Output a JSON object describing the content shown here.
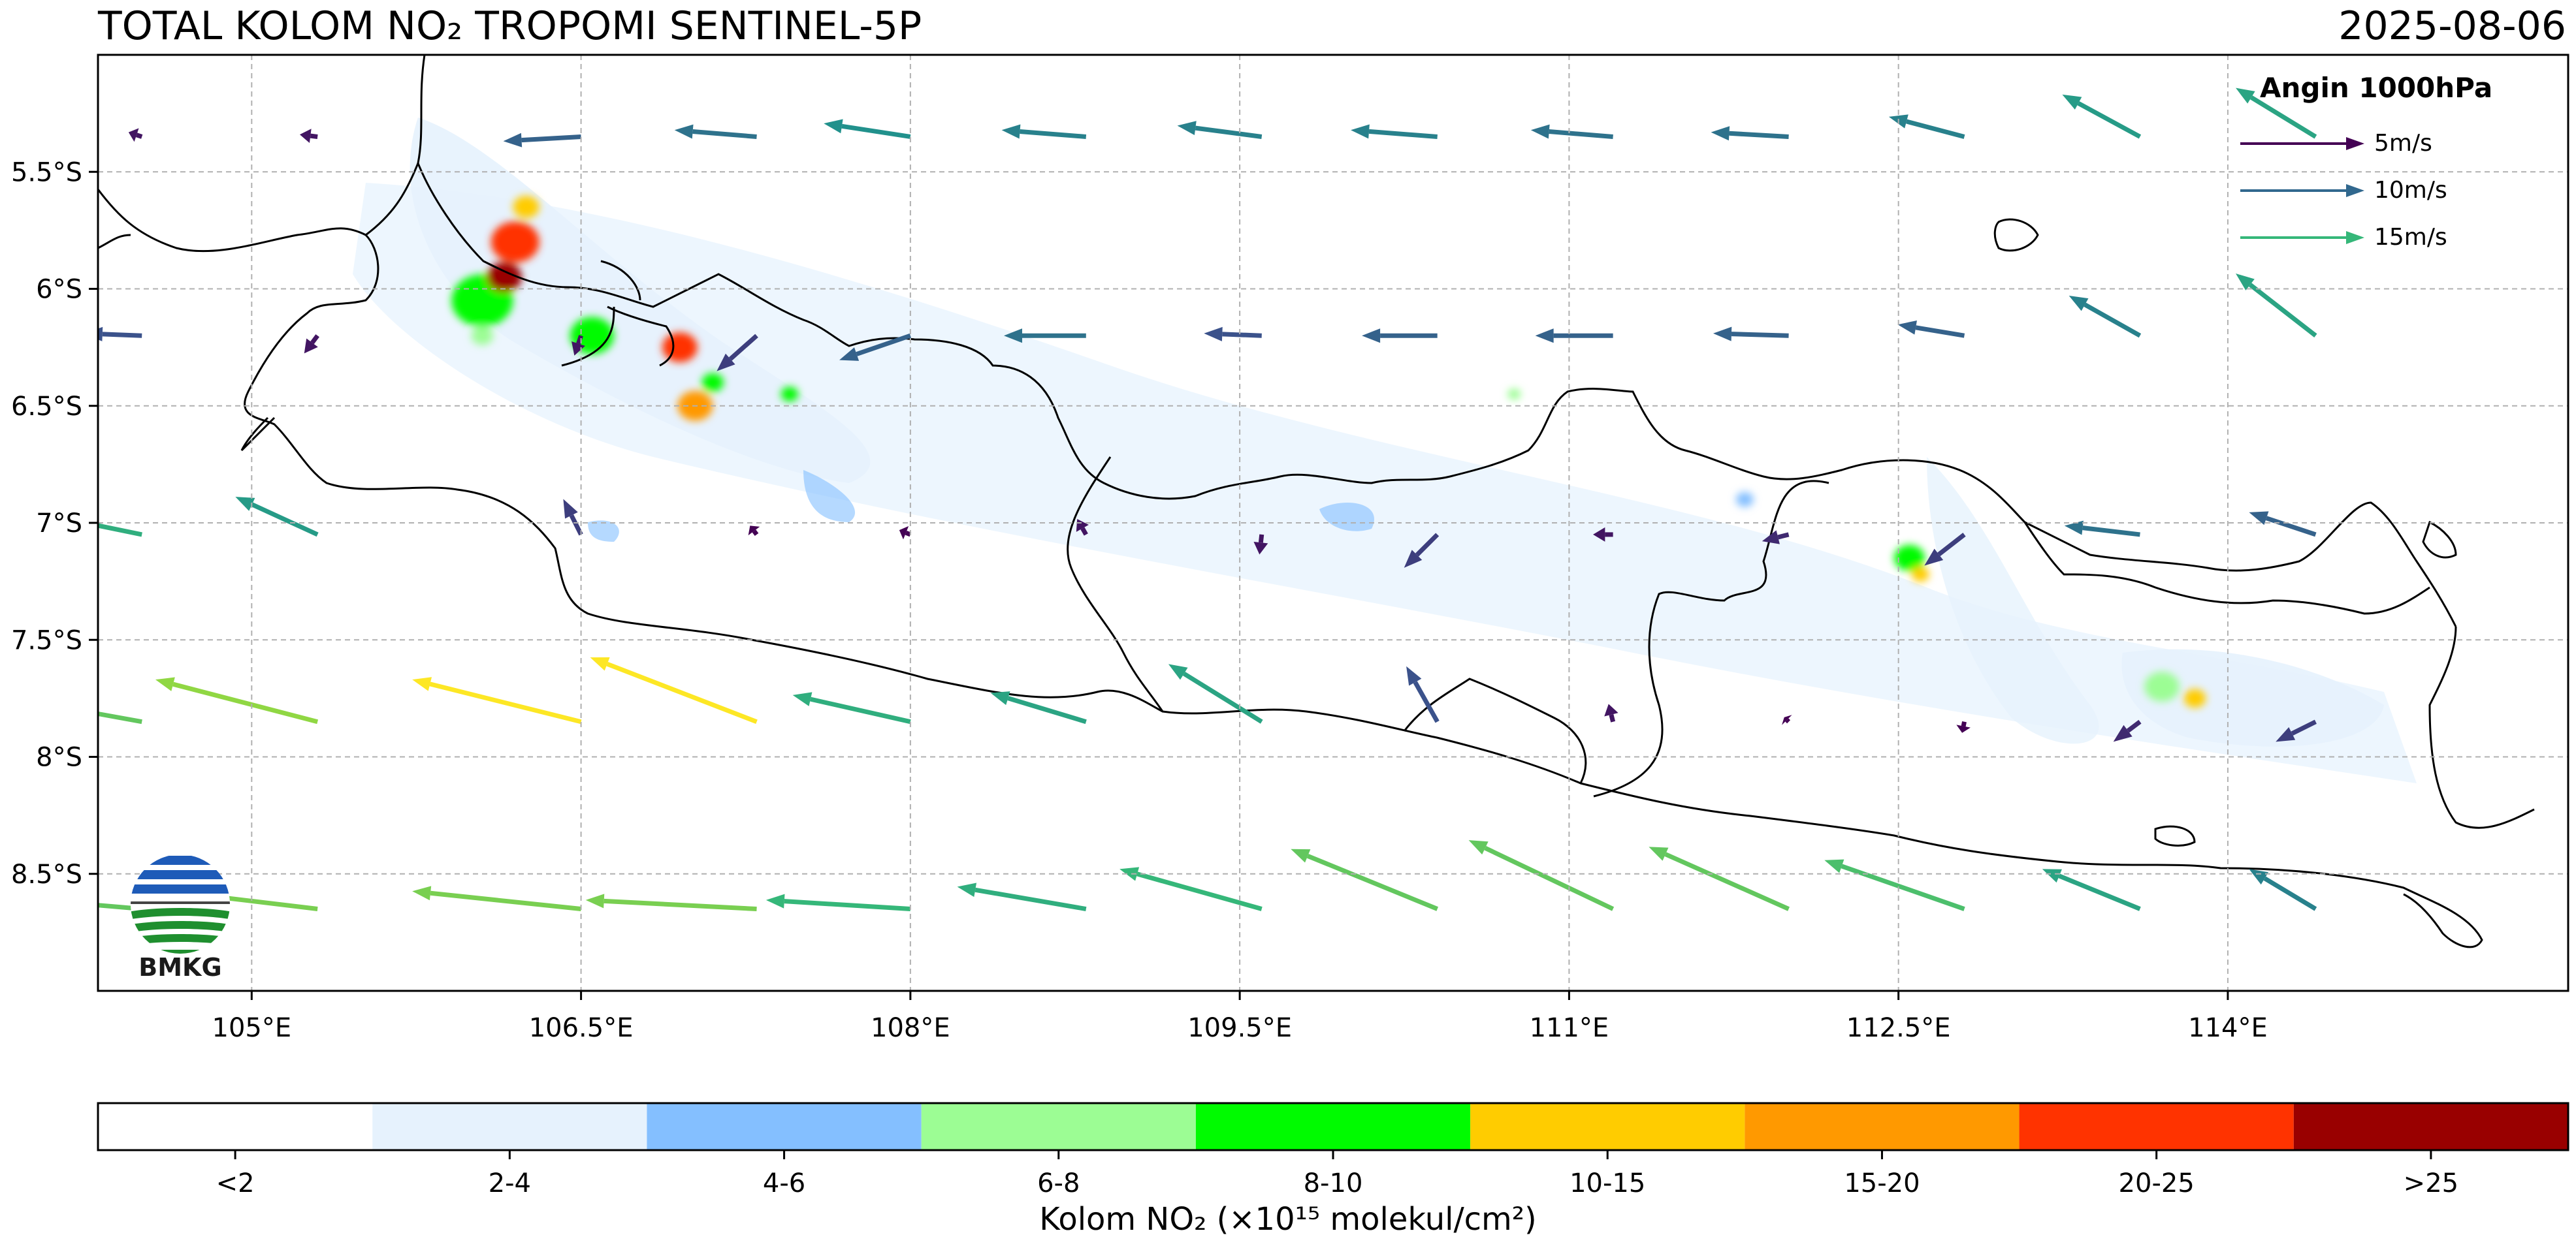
{
  "header": {
    "title": "TOTAL KOLOM NO₂ TROPOMI SENTINEL-5P",
    "date": "2025-08-06"
  },
  "map": {
    "extent": {
      "lon_min": 104.3,
      "lon_max": 115.55,
      "lat_min": -9.0,
      "lat_max": -5.0
    },
    "lon_ticks": [
      {
        "value": 105.0,
        "label": "105°E"
      },
      {
        "value": 106.5,
        "label": "106.5°E"
      },
      {
        "value": 108.0,
        "label": "108°E"
      },
      {
        "value": 109.5,
        "label": "109.5°E"
      },
      {
        "value": 111.0,
        "label": "111°E"
      },
      {
        "value": 112.5,
        "label": "112.5°E"
      },
      {
        "value": 114.0,
        "label": "114°E"
      }
    ],
    "lat_ticks": [
      {
        "value": -5.5,
        "label": "5.5°S"
      },
      {
        "value": -6.0,
        "label": "6°S"
      },
      {
        "value": -6.5,
        "label": "6.5°S"
      },
      {
        "value": -7.0,
        "label": "7°S"
      },
      {
        "value": -7.5,
        "label": "7.5°S"
      },
      {
        "value": -8.0,
        "label": "8°S"
      },
      {
        "value": -8.5,
        "label": "8.5°S"
      }
    ],
    "gridlines": true,
    "no2_hotspots": [
      {
        "lon": 106.25,
        "lat": -5.65,
        "class": 5,
        "r": 0.06
      },
      {
        "lon": 106.2,
        "lat": -5.8,
        "class": 7,
        "r": 0.11
      },
      {
        "lon": 106.15,
        "lat": -5.95,
        "class": 8,
        "r": 0.08
      },
      {
        "lon": 106.05,
        "lat": -6.05,
        "class": 4,
        "r": 0.14
      },
      {
        "lon": 106.05,
        "lat": -6.2,
        "class": 3,
        "r": 0.05
      },
      {
        "lon": 106.55,
        "lat": -6.2,
        "class": 4,
        "r": 0.1
      },
      {
        "lon": 106.95,
        "lat": -6.25,
        "class": 7,
        "r": 0.08
      },
      {
        "lon": 107.1,
        "lat": -6.4,
        "class": 4,
        "r": 0.05
      },
      {
        "lon": 107.02,
        "lat": -6.5,
        "class": 6,
        "r": 0.08
      },
      {
        "lon": 107.45,
        "lat": -6.45,
        "class": 4,
        "r": 0.04
      },
      {
        "lon": 110.75,
        "lat": -6.45,
        "class": 3,
        "r": 0.03
      },
      {
        "lon": 111.8,
        "lat": -6.9,
        "class": 2,
        "r": 0.04
      },
      {
        "lon": 112.55,
        "lat": -7.15,
        "class": 4,
        "r": 0.07
      },
      {
        "lon": 112.6,
        "lat": -7.22,
        "class": 5,
        "r": 0.04
      },
      {
        "lon": 113.7,
        "lat": -7.7,
        "class": 3,
        "r": 0.08
      },
      {
        "lon": 113.85,
        "lat": -7.75,
        "class": 5,
        "r": 0.05
      }
    ],
    "wind_vectors": [
      {
        "lon": 104.5,
        "lat": -5.35,
        "u": -0.6,
        "v": 0.2,
        "speed": 3
      },
      {
        "lon": 105.3,
        "lat": -5.35,
        "u": -0.8,
        "v": 0.1,
        "speed": 3
      },
      {
        "lon": 106.5,
        "lat": -5.35,
        "u": -3.5,
        "v": -0.2,
        "speed": 7
      },
      {
        "lon": 107.3,
        "lat": -5.35,
        "u": -3.7,
        "v": 0.3,
        "speed": 8
      },
      {
        "lon": 108.0,
        "lat": -5.35,
        "u": -3.9,
        "v": 0.6,
        "speed": 10
      },
      {
        "lon": 108.8,
        "lat": -5.35,
        "u": -3.8,
        "v": 0.3,
        "speed": 9
      },
      {
        "lon": 109.6,
        "lat": -5.35,
        "u": -3.8,
        "v": 0.5,
        "speed": 9
      },
      {
        "lon": 110.4,
        "lat": -5.35,
        "u": -3.9,
        "v": 0.3,
        "speed": 9
      },
      {
        "lon": 111.2,
        "lat": -5.35,
        "u": -3.7,
        "v": 0.3,
        "speed": 8
      },
      {
        "lon": 112.0,
        "lat": -5.35,
        "u": -3.5,
        "v": 0.2,
        "speed": 8
      },
      {
        "lon": 112.8,
        "lat": -5.35,
        "u": -3.4,
        "v": 0.9,
        "speed": 9
      },
      {
        "lon": 113.6,
        "lat": -5.35,
        "u": -3.5,
        "v": 1.9,
        "speed": 11
      },
      {
        "lon": 114.4,
        "lat": -5.35,
        "u": -3.6,
        "v": 2.2,
        "speed": 12
      },
      {
        "lon": 104.5,
        "lat": -6.2,
        "u": -2.6,
        "v": 0.1,
        "speed": 6
      },
      {
        "lon": 105.3,
        "lat": -6.2,
        "u": -0.6,
        "v": -0.8,
        "speed": 3
      },
      {
        "lon": 106.5,
        "lat": -6.2,
        "u": -0.3,
        "v": -0.9,
        "speed": 3
      },
      {
        "lon": 107.3,
        "lat": -6.2,
        "u": -1.8,
        "v": -1.6,
        "speed": 5
      },
      {
        "lon": 108.0,
        "lat": -6.2,
        "u": -3.2,
        "v": -1.1,
        "speed": 7
      },
      {
        "lon": 108.8,
        "lat": -6.2,
        "u": -3.7,
        "v": 0.0,
        "speed": 8
      },
      {
        "lon": 109.6,
        "lat": -6.2,
        "u": -2.6,
        "v": 0.1,
        "speed": 6
      },
      {
        "lon": 110.4,
        "lat": -6.2,
        "u": -3.4,
        "v": 0.0,
        "speed": 7
      },
      {
        "lon": 111.2,
        "lat": -6.2,
        "u": -3.5,
        "v": 0.0,
        "speed": 7
      },
      {
        "lon": 112.0,
        "lat": -6.2,
        "u": -3.4,
        "v": 0.1,
        "speed": 7
      },
      {
        "lon": 112.8,
        "lat": -6.2,
        "u": -3.0,
        "v": 0.5,
        "speed": 7
      },
      {
        "lon": 113.6,
        "lat": -6.2,
        "u": -3.2,
        "v": 1.8,
        "speed": 9
      },
      {
        "lon": 114.4,
        "lat": -6.2,
        "u": -3.6,
        "v": 2.8,
        "speed": 12
      },
      {
        "lon": 104.5,
        "lat": -7.05,
        "u": -3.9,
        "v": 0.8,
        "speed": 13
      },
      {
        "lon": 105.3,
        "lat": -7.05,
        "u": -3.7,
        "v": 1.7,
        "speed": 11
      },
      {
        "lon": 106.5,
        "lat": -7.05,
        "u": -0.8,
        "v": 1.6,
        "speed": 5
      },
      {
        "lon": 107.3,
        "lat": -7.05,
        "u": -0.3,
        "v": 0.4,
        "speed": 2
      },
      {
        "lon": 108.0,
        "lat": -7.05,
        "u": -0.5,
        "v": 0.2,
        "speed": 2
      },
      {
        "lon": 108.8,
        "lat": -7.05,
        "u": -0.4,
        "v": 0.7,
        "speed": 3
      },
      {
        "lon": 109.6,
        "lat": -7.05,
        "u": -0.1,
        "v": -0.9,
        "speed": 3
      },
      {
        "lon": 110.4,
        "lat": -7.05,
        "u": -1.5,
        "v": -1.5,
        "speed": 5
      },
      {
        "lon": 111.2,
        "lat": -7.05,
        "u": -0.9,
        "v": 0.0,
        "speed": 3
      },
      {
        "lon": 112.0,
        "lat": -7.05,
        "u": -1.2,
        "v": -0.3,
        "speed": 4
      },
      {
        "lon": 112.8,
        "lat": -7.05,
        "u": -1.8,
        "v": -1.4,
        "speed": 5
      },
      {
        "lon": 113.6,
        "lat": -7.05,
        "u": -3.4,
        "v": 0.4,
        "speed": 8
      },
      {
        "lon": 114.4,
        "lat": -7.05,
        "u": -3.0,
        "v": 1.0,
        "speed": 7
      },
      {
        "lon": 104.5,
        "lat": -7.85,
        "u": -4.4,
        "v": 0.8,
        "speed": 16
      },
      {
        "lon": 105.3,
        "lat": -7.85,
        "u": -7.3,
        "v": 1.9,
        "speed": 18
      },
      {
        "lon": 106.5,
        "lat": -7.85,
        "u": -7.6,
        "v": 1.9,
        "speed": 22
      },
      {
        "lon": 107.3,
        "lat": -7.85,
        "u": -7.5,
        "v": 2.9,
        "speed": 22
      },
      {
        "lon": 108.0,
        "lat": -7.85,
        "u": -5.3,
        "v": 1.2,
        "speed": 13
      },
      {
        "lon": 108.8,
        "lat": -7.85,
        "u": -4.3,
        "v": 1.3,
        "speed": 12
      },
      {
        "lon": 109.6,
        "lat": -7.85,
        "u": -4.2,
        "v": 2.6,
        "speed": 12
      },
      {
        "lon": 110.4,
        "lat": -7.85,
        "u": -1.4,
        "v": 2.5,
        "speed": 6
      },
      {
        "lon": 111.2,
        "lat": -7.85,
        "u": -0.2,
        "v": 0.8,
        "speed": 3
      },
      {
        "lon": 112.0,
        "lat": -7.85,
        "u": -0.2,
        "v": 0.2,
        "speed": 2
      },
      {
        "lon": 112.8,
        "lat": -7.85,
        "u": -0.1,
        "v": -0.5,
        "speed": 2
      },
      {
        "lon": 113.6,
        "lat": -7.85,
        "u": -1.2,
        "v": -0.9,
        "speed": 4
      },
      {
        "lon": 114.4,
        "lat": -7.85,
        "u": -1.8,
        "v": -0.9,
        "speed": 5
      },
      {
        "lon": 104.5,
        "lat": -8.65,
        "u": -3.5,
        "v": 0.3,
        "speed": 16
      },
      {
        "lon": 105.3,
        "lat": -8.65,
        "u": -7.5,
        "v": 0.9,
        "speed": 17
      },
      {
        "lon": 106.5,
        "lat": -8.65,
        "u": -7.6,
        "v": 0.8,
        "speed": 17
      },
      {
        "lon": 107.3,
        "lat": -8.65,
        "u": -7.7,
        "v": 0.4,
        "speed": 17
      },
      {
        "lon": 108.0,
        "lat": -8.65,
        "u": -6.5,
        "v": 0.4,
        "speed": 14
      },
      {
        "lon": 108.8,
        "lat": -8.65,
        "u": -5.8,
        "v": 1.0,
        "speed": 13
      },
      {
        "lon": 109.6,
        "lat": -8.65,
        "u": -6.4,
        "v": 1.8,
        "speed": 14
      },
      {
        "lon": 110.4,
        "lat": -8.65,
        "u": -6.6,
        "v": 2.7,
        "speed": 16
      },
      {
        "lon": 111.2,
        "lat": -8.65,
        "u": -6.5,
        "v": 3.1,
        "speed": 16
      },
      {
        "lon": 112.0,
        "lat": -8.65,
        "u": -6.3,
        "v": 2.8,
        "speed": 16
      },
      {
        "lon": 112.8,
        "lat": -8.65,
        "u": -6.3,
        "v": 2.2,
        "speed": 15
      },
      {
        "lon": 113.6,
        "lat": -8.65,
        "u": -4.4,
        "v": 1.8,
        "speed": 12
      },
      {
        "lon": 114.4,
        "lat": -8.65,
        "u": -3.0,
        "v": 1.8,
        "speed": 9
      }
    ]
  },
  "wind_legend": {
    "title": "Angin 1000hPa",
    "entries": [
      {
        "label": "5m/s",
        "color": "#440154"
      },
      {
        "label": "10m/s",
        "color": "#31688e"
      },
      {
        "label": "15m/s",
        "color": "#35b779"
      }
    ]
  },
  "logo": {
    "text": "BMKG"
  },
  "colorbar": {
    "label": "Kolom NO₂ (×10¹⁵ molekul/cm²)",
    "classes": [
      {
        "label": "<2",
        "color": "#ffffff"
      },
      {
        "label": "2-4",
        "color": "#e6f2fd"
      },
      {
        "label": "4-6",
        "color": "#84bfff"
      },
      {
        "label": "6-8",
        "color": "#9cfd94"
      },
      {
        "label": "8-10",
        "color": "#00fb00"
      },
      {
        "label": "10-15",
        "color": "#ffcc00"
      },
      {
        "label": "15-20",
        "color": "#ff9900"
      },
      {
        "label": "20-25",
        "color": "#ff3300"
      },
      {
        "label": ">25",
        "color": "#990000"
      }
    ]
  }
}
